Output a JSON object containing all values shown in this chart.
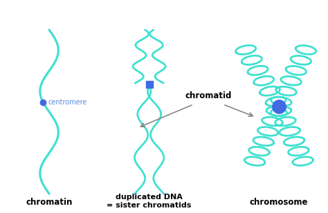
{
  "bg_color": "#ffffff",
  "strand_color": "#40e0d0",
  "centromere_color": "#4169e1",
  "label_color": "#000000",
  "centromere_label_color": "#5b8bdf",
  "lw": 2.0,
  "labels": {
    "chromatin": "chromatin",
    "dup_dna": "duplicated DNA\n= sister chromatids",
    "chromosome": "chromosome",
    "centromere": "centromere",
    "chromatid": "chromatid"
  },
  "fig_width": 4.74,
  "fig_height": 3.08,
  "dpi": 100
}
